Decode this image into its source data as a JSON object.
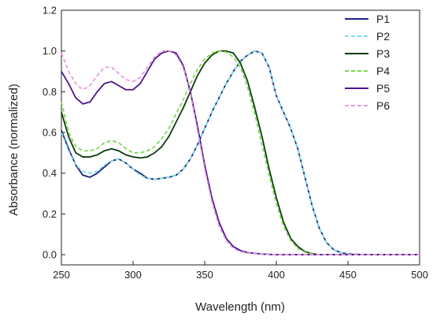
{
  "chart_data": {
    "type": "line",
    "title": "",
    "xlabel": "Wavelength (nm)",
    "ylabel": "Absorbance (normalized)",
    "xlim": [
      250,
      500
    ],
    "ylim": [
      -0.05,
      1.2
    ],
    "xticks": [
      "250",
      "300",
      "350",
      "400",
      "450",
      "500"
    ],
    "yticks": [
      "0.0",
      "0.2",
      "0.4",
      "0.6",
      "0.8",
      "1.0",
      "1.2"
    ],
    "grid": false,
    "legend_position": "top-right",
    "series": [
      {
        "name": "P1",
        "color": "#1a237e",
        "dash": "solid",
        "x": [
          250,
          255,
          260,
          265,
          270,
          275,
          280,
          285,
          290,
          295,
          300,
          305,
          310,
          315,
          320,
          325,
          330,
          335,
          340,
          345,
          350,
          355,
          360,
          365,
          370,
          375,
          380,
          385,
          390,
          395,
          400,
          405,
          410,
          415,
          420,
          425,
          430,
          435,
          440,
          445,
          450,
          460,
          470,
          480,
          490,
          500
        ],
        "y": [
          0.61,
          0.52,
          0.44,
          0.39,
          0.38,
          0.4,
          0.43,
          0.46,
          0.47,
          0.45,
          0.42,
          0.4,
          0.375,
          0.37,
          0.375,
          0.38,
          0.39,
          0.42,
          0.47,
          0.54,
          0.62,
          0.7,
          0.77,
          0.84,
          0.9,
          0.95,
          0.98,
          1.0,
          0.99,
          0.92,
          0.78,
          0.7,
          0.62,
          0.52,
          0.38,
          0.24,
          0.13,
          0.06,
          0.025,
          0.01,
          0.004,
          0.0,
          0.0,
          0.0,
          0.0,
          0.0
        ]
      },
      {
        "name": "P2",
        "color": "#80deea",
        "dash": "dashed",
        "x": [
          250,
          255,
          260,
          265,
          270,
          275,
          280,
          285,
          290,
          295,
          300,
          305,
          310,
          315,
          320,
          325,
          330,
          335,
          340,
          345,
          350,
          355,
          360,
          365,
          370,
          375,
          380,
          385,
          390,
          395,
          400,
          405,
          410,
          415,
          420,
          425,
          430,
          435,
          440,
          445,
          450,
          460,
          470,
          480,
          490,
          500
        ],
        "y": [
          0.6,
          0.51,
          0.44,
          0.41,
          0.4,
          0.41,
          0.44,
          0.46,
          0.47,
          0.45,
          0.42,
          0.39,
          0.375,
          0.37,
          0.375,
          0.38,
          0.39,
          0.42,
          0.47,
          0.54,
          0.62,
          0.7,
          0.77,
          0.84,
          0.9,
          0.95,
          0.98,
          1.0,
          0.99,
          0.92,
          0.78,
          0.7,
          0.62,
          0.52,
          0.38,
          0.24,
          0.13,
          0.06,
          0.025,
          0.01,
          0.004,
          0.0,
          0.0,
          0.0,
          0.0,
          0.0
        ]
      },
      {
        "name": "P3",
        "color": "#0d3b0d",
        "dash": "solid",
        "x": [
          250,
          255,
          260,
          265,
          270,
          275,
          280,
          285,
          290,
          295,
          300,
          305,
          310,
          315,
          320,
          325,
          330,
          335,
          340,
          345,
          350,
          355,
          360,
          365,
          370,
          375,
          380,
          385,
          390,
          395,
          400,
          405,
          410,
          415,
          420,
          425,
          430,
          440,
          450,
          460,
          470,
          480,
          490,
          500
        ],
        "y": [
          0.7,
          0.58,
          0.5,
          0.48,
          0.48,
          0.49,
          0.51,
          0.52,
          0.51,
          0.49,
          0.48,
          0.475,
          0.48,
          0.5,
          0.53,
          0.58,
          0.65,
          0.72,
          0.8,
          0.88,
          0.94,
          0.98,
          1.0,
          1.0,
          0.99,
          0.94,
          0.85,
          0.72,
          0.58,
          0.42,
          0.28,
          0.16,
          0.08,
          0.04,
          0.015,
          0.005,
          0.0,
          0.0,
          0.0,
          0.0,
          0.0,
          0.0,
          0.0,
          0.0
        ]
      },
      {
        "name": "P4",
        "color": "#7ed957",
        "dash": "dashed",
        "x": [
          250,
          255,
          260,
          265,
          270,
          275,
          280,
          285,
          290,
          295,
          300,
          305,
          310,
          315,
          320,
          325,
          330,
          335,
          340,
          345,
          350,
          355,
          360,
          365,
          370,
          375,
          380,
          385,
          390,
          395,
          400,
          405,
          410,
          415,
          420,
          425,
          430,
          440,
          450,
          460,
          470,
          480,
          490,
          500
        ],
        "y": [
          0.75,
          0.6,
          0.53,
          0.51,
          0.51,
          0.52,
          0.55,
          0.56,
          0.55,
          0.52,
          0.5,
          0.5,
          0.51,
          0.53,
          0.57,
          0.62,
          0.69,
          0.76,
          0.84,
          0.91,
          0.96,
          0.99,
          1.0,
          0.995,
          0.97,
          0.92,
          0.82,
          0.69,
          0.54,
          0.39,
          0.25,
          0.14,
          0.07,
          0.03,
          0.012,
          0.004,
          0.0,
          0.0,
          0.0,
          0.0,
          0.0,
          0.0,
          0.0,
          0.0
        ]
      },
      {
        "name": "P5",
        "color": "#4a148c",
        "dash": "solid",
        "x": [
          250,
          255,
          260,
          265,
          270,
          275,
          280,
          285,
          290,
          295,
          300,
          305,
          310,
          315,
          320,
          325,
          330,
          335,
          340,
          345,
          350,
          355,
          360,
          365,
          370,
          375,
          380,
          390,
          400,
          420,
          450,
          500
        ],
        "y": [
          0.9,
          0.84,
          0.77,
          0.74,
          0.75,
          0.8,
          0.84,
          0.85,
          0.83,
          0.81,
          0.81,
          0.84,
          0.9,
          0.96,
          0.99,
          1.0,
          0.99,
          0.93,
          0.8,
          0.63,
          0.44,
          0.28,
          0.16,
          0.08,
          0.04,
          0.02,
          0.01,
          0.003,
          0.0,
          0.0,
          0.0,
          0.0
        ]
      },
      {
        "name": "P6",
        "color": "#e59ee0",
        "dash": "dashed",
        "x": [
          250,
          255,
          260,
          265,
          270,
          275,
          280,
          285,
          290,
          295,
          300,
          305,
          310,
          315,
          320,
          325,
          330,
          335,
          340,
          345,
          350,
          355,
          360,
          365,
          370,
          375,
          380,
          390,
          400,
          420,
          450,
          500
        ],
        "y": [
          0.99,
          0.9,
          0.84,
          0.81,
          0.83,
          0.88,
          0.92,
          0.92,
          0.89,
          0.86,
          0.85,
          0.87,
          0.92,
          0.97,
          1.0,
          1.0,
          0.98,
          0.92,
          0.79,
          0.61,
          0.42,
          0.26,
          0.14,
          0.07,
          0.03,
          0.015,
          0.008,
          0.002,
          0.0,
          0.0,
          0.0,
          0.0
        ]
      }
    ]
  }
}
